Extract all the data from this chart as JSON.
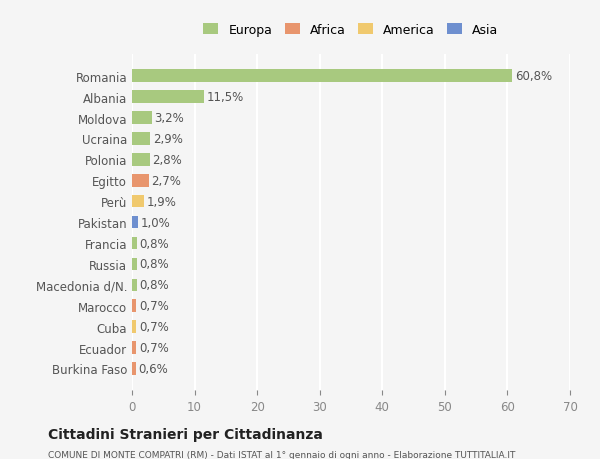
{
  "countries": [
    "Romania",
    "Albania",
    "Moldova",
    "Ucraina",
    "Polonia",
    "Egitto",
    "Perù",
    "Pakistan",
    "Francia",
    "Russia",
    "Macedonia d/N.",
    "Marocco",
    "Cuba",
    "Ecuador",
    "Burkina Faso"
  ],
  "values": [
    60.8,
    11.5,
    3.2,
    2.9,
    2.8,
    2.7,
    1.9,
    1.0,
    0.8,
    0.8,
    0.8,
    0.7,
    0.7,
    0.7,
    0.6
  ],
  "labels": [
    "60,8%",
    "11,5%",
    "3,2%",
    "2,9%",
    "2,8%",
    "2,7%",
    "1,9%",
    "1,0%",
    "0,8%",
    "0,8%",
    "0,8%",
    "0,7%",
    "0,7%",
    "0,7%",
    "0,6%"
  ],
  "colors": [
    "#a8c97f",
    "#a8c97f",
    "#a8c97f",
    "#a8c97f",
    "#a8c97f",
    "#e8956d",
    "#f0c96e",
    "#6e8fcf",
    "#a8c97f",
    "#a8c97f",
    "#a8c97f",
    "#e8956d",
    "#f0c96e",
    "#e8956d",
    "#e8956d"
  ],
  "legend": [
    {
      "label": "Europa",
      "color": "#a8c97f"
    },
    {
      "label": "Africa",
      "color": "#e8956d"
    },
    {
      "label": "America",
      "color": "#f0c96e"
    },
    {
      "label": "Asia",
      "color": "#6e8fcf"
    }
  ],
  "xlim": [
    0,
    70
  ],
  "xticks": [
    0,
    10,
    20,
    30,
    40,
    50,
    60,
    70
  ],
  "title": "Cittadini Stranieri per Cittadinanza",
  "subtitle": "COMUNE DI MONTE COMPATRI (RM) - Dati ISTAT al 1° gennaio di ogni anno - Elaborazione TUTTITALIA.IT",
  "background_color": "#f5f5f5",
  "bar_height": 0.6,
  "grid_color": "#ffffff",
  "label_fontsize": 8.5,
  "tick_fontsize": 8.5
}
